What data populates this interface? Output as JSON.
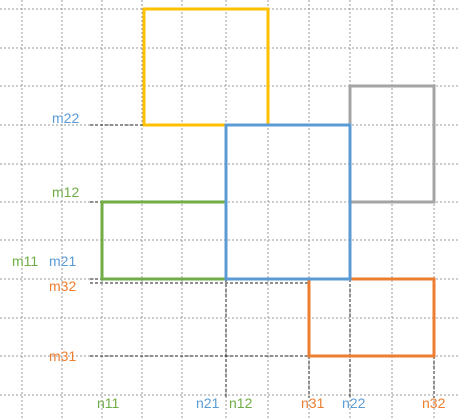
{
  "colors": {
    "grid": "#9a9a9a",
    "guide": "#222222",
    "yellow": "#ffc000",
    "blue": "#5b9bd5",
    "gray": "#a5a5a5",
    "green": "#70ad47",
    "orange": "#ed7d31"
  },
  "labels": {
    "m22": "m22",
    "m12": "m12",
    "m11": "m11",
    "m21": "m21",
    "m32": "m32",
    "m31": "m31",
    "n11": "n11",
    "n21": "n21",
    "n12": "n12",
    "n31": "n31",
    "n22": "n22",
    "n32": "n32"
  }
}
